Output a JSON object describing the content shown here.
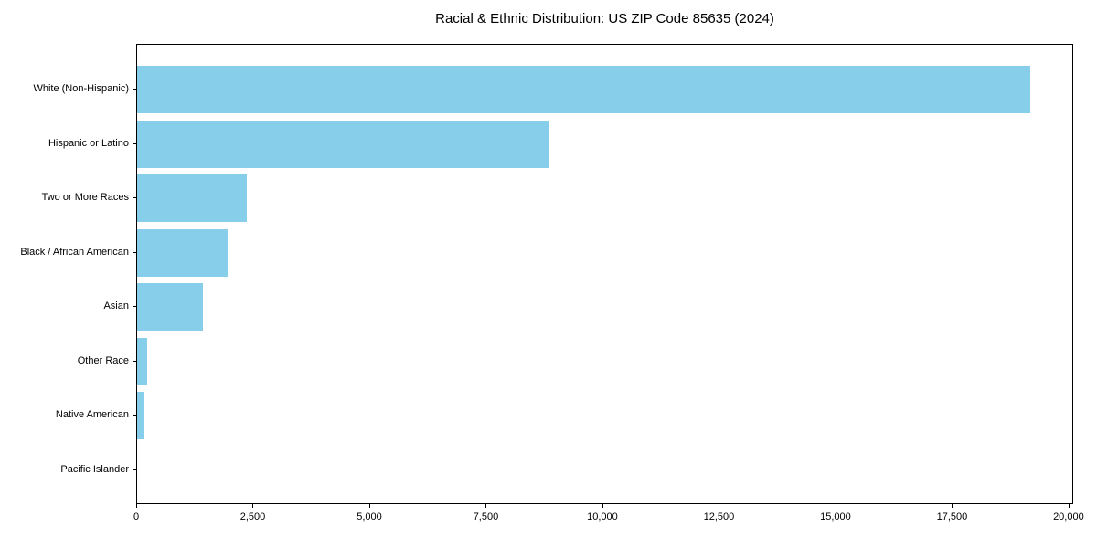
{
  "chart_data": {
    "type": "bar",
    "orientation": "horizontal",
    "title": "Racial & Ethnic Distribution: US ZIP Code 85635 (2024)",
    "xlabel": "",
    "ylabel": "",
    "categories": [
      "White (Non-Hispanic)",
      "Hispanic or Latino",
      "Two or More Races",
      "Black / African American",
      "Asian",
      "Other Race",
      "Native American",
      "Pacific Islander"
    ],
    "values": [
      19150,
      8840,
      2350,
      1940,
      1410,
      220,
      150,
      0
    ],
    "xlim": [
      0,
      20100
    ],
    "x_ticks": [
      0,
      2500,
      5000,
      7500,
      10000,
      12500,
      15000,
      17500,
      20000
    ],
    "x_tick_labels": [
      "0",
      "2,500",
      "5,000",
      "7,500",
      "10,000",
      "12,500",
      "15,000",
      "17,500",
      "20,000"
    ],
    "bar_color": "#87CEEB",
    "axis_color": "#000000",
    "background_color": "#ffffff",
    "grid": false,
    "legend": null
  }
}
